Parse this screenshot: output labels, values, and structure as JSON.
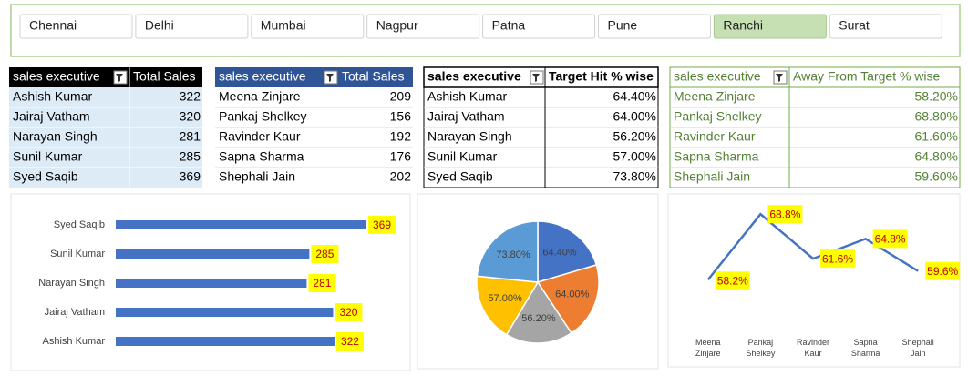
{
  "slicer": {
    "items": [
      "Chennai",
      "Delhi",
      "Mumbai",
      "Nagpur",
      "Patna",
      "Pune",
      "Ranchi",
      "Surat"
    ],
    "selected": "Ranchi"
  },
  "tables": [
    {
      "headers": [
        "sales executive",
        "Total Sales"
      ],
      "rows": [
        [
          "Ashish Kumar",
          322
        ],
        [
          "Jairaj Vatham",
          320
        ],
        [
          "Narayan Singh",
          281
        ],
        [
          "Sunil Kumar",
          285
        ],
        [
          "Syed Saqib",
          369
        ]
      ]
    },
    {
      "headers": [
        "sales executive",
        "Total Sales"
      ],
      "rows": [
        [
          "Meena Zinjare",
          209
        ],
        [
          "Pankaj Shelkey",
          156
        ],
        [
          "Ravinder Kaur",
          192
        ],
        [
          "Sapna Sharma",
          176
        ],
        [
          "Shephali Jain",
          202
        ]
      ]
    },
    {
      "headers": [
        "sales executive",
        "Target Hit % wise"
      ],
      "rows": [
        [
          "Ashish Kumar",
          "64.40%"
        ],
        [
          "Jairaj Vatham",
          "64.00%"
        ],
        [
          "Narayan Singh",
          "56.20%"
        ],
        [
          "Sunil Kumar",
          "57.00%"
        ],
        [
          "Syed Saqib",
          "73.80%"
        ]
      ]
    },
    {
      "headers": [
        "sales executive",
        "Away From Target % wise"
      ],
      "rows": [
        [
          "Meena Zinjare",
          "58.20%"
        ],
        [
          "Pankaj Shelkey",
          "68.80%"
        ],
        [
          "Ravinder Kaur",
          "61.60%"
        ],
        [
          "Sapna Sharma",
          "64.80%"
        ],
        [
          "Shephali Jain",
          "59.60%"
        ]
      ]
    }
  ],
  "chart_data": [
    {
      "type": "bar",
      "orientation": "horizontal",
      "categories": [
        "Ashish Kumar",
        "Jairaj Vatham",
        "Narayan Singh",
        "Sunil Kumar",
        "Syed Saqib"
      ],
      "values": [
        322,
        320,
        281,
        285,
        369
      ],
      "color": "#4472c4",
      "xlim": [
        0,
        420
      ]
    },
    {
      "type": "pie",
      "values": [
        64.4,
        64.0,
        56.2,
        57.0,
        73.8
      ],
      "value_labels": [
        "64.40%",
        "64.00%",
        "56.20%",
        "57.00%",
        "73.80%"
      ],
      "colors": [
        "#4472c4",
        "#ed7d31",
        "#a5a5a5",
        "#ffc000",
        "#5b9bd5"
      ]
    },
    {
      "type": "line",
      "categories": [
        "Meena Zinjare",
        "Pankaj Shelkey",
        "Ravinder Kaur",
        "Sapna Sharma",
        "Shephali Jain"
      ],
      "values": [
        58.2,
        68.8,
        61.6,
        64.8,
        59.6
      ],
      "value_labels": [
        "58.2%",
        "68.8%",
        "61.6%",
        "64.8%",
        "59.6%"
      ],
      "color": "#4472c4",
      "ylim": [
        50,
        70
      ]
    }
  ]
}
